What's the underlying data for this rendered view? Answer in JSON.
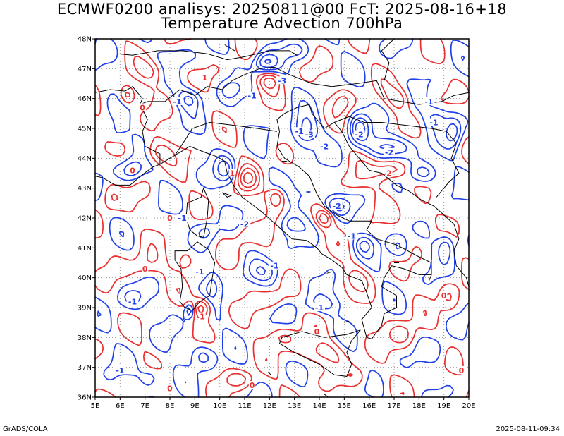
{
  "title_line1": "ECMWF0200 analisys: 20250811@00 FcT: 2025-08-16+18",
  "title_line2": "Temperature Advection 700hPa",
  "footer_left": "GrADS/COLA",
  "footer_right": "2025-08-11-09:34",
  "map": {
    "lon_range": [
      5,
      20
    ],
    "lat_range": [
      36,
      48
    ],
    "lon_labels": [
      "5E",
      "6E",
      "7E",
      "8E",
      "9E",
      "10E",
      "11E",
      "12E",
      "13E",
      "14E",
      "15E",
      "16E",
      "17E",
      "18E",
      "19E",
      "20E"
    ],
    "lat_labels": [
      "36N",
      "37N",
      "38N",
      "39N",
      "40N",
      "41N",
      "42N",
      "43N",
      "44N",
      "45N",
      "46N",
      "47N",
      "48N"
    ],
    "grid": "dotted",
    "colors": {
      "positive": "#e83030",
      "negative": "#2040e8",
      "coast": "#000000"
    },
    "contour_labels": [
      {
        "text": "-3",
        "lon": 12.5,
        "lat": 46.6,
        "sign": "neg"
      },
      {
        "text": "-1",
        "lon": 11.3,
        "lat": 46.1,
        "sign": "neg"
      },
      {
        "text": "-1",
        "lon": 8.3,
        "lat": 45.9,
        "sign": "neg"
      },
      {
        "text": "1",
        "lon": 9.4,
        "lat": 46.7,
        "sign": "pos"
      },
      {
        "text": "0",
        "lon": 6.9,
        "lat": 45.7,
        "sign": "pos"
      },
      {
        "text": "-1",
        "lon": 13.2,
        "lat": 44.9,
        "sign": "neg"
      },
      {
        "text": "-3",
        "lon": 13.6,
        "lat": 44.8,
        "sign": "neg"
      },
      {
        "text": "-2",
        "lon": 14.2,
        "lat": 44.4,
        "sign": "neg"
      },
      {
        "text": "-2",
        "lon": 15.6,
        "lat": 44.8,
        "sign": "neg"
      },
      {
        "text": "-2",
        "lon": 16.8,
        "lat": 44.2,
        "sign": "neg"
      },
      {
        "text": "-1",
        "lon": 18.4,
        "lat": 45.9,
        "sign": "neg"
      },
      {
        "text": "2",
        "lon": 16.8,
        "lat": 43.5,
        "sign": "pos"
      },
      {
        "text": "0",
        "lon": 6.5,
        "lat": 43.6,
        "sign": "pos"
      },
      {
        "text": "-2",
        "lon": 11.0,
        "lat": 41.8,
        "sign": "neg"
      },
      {
        "text": "-2",
        "lon": 14.7,
        "lat": 42.4,
        "sign": "neg"
      },
      {
        "text": "1",
        "lon": 10.5,
        "lat": 43.5,
        "sign": "pos"
      },
      {
        "text": "0",
        "lon": 8.0,
        "lat": 42.0,
        "sign": "pos"
      },
      {
        "text": "-1",
        "lon": 8.5,
        "lat": 42.0,
        "sign": "neg"
      },
      {
        "text": "-1",
        "lon": 15.3,
        "lat": 41.4,
        "sign": "neg"
      },
      {
        "text": "0",
        "lon": 7.0,
        "lat": 40.3,
        "sign": "pos"
      },
      {
        "text": "-1",
        "lon": 12.2,
        "lat": 40.4,
        "sign": "neg"
      },
      {
        "text": "-1",
        "lon": 9.2,
        "lat": 40.2,
        "sign": "neg"
      },
      {
        "text": "-1",
        "lon": 6.5,
        "lat": 39.2,
        "sign": "neg"
      },
      {
        "text": "1",
        "lon": 9.3,
        "lat": 38.7,
        "sign": "pos"
      },
      {
        "text": "-1",
        "lon": 14.0,
        "lat": 39.0,
        "sign": "neg"
      },
      {
        "text": "0",
        "lon": 13.9,
        "lat": 38.2,
        "sign": "pos"
      },
      {
        "text": "-1",
        "lon": 6.0,
        "lat": 36.9,
        "sign": "neg"
      },
      {
        "text": "0",
        "lon": 8.0,
        "lat": 36.3,
        "sign": "pos"
      },
      {
        "text": "0",
        "lon": 19.0,
        "lat": 39.4,
        "sign": "pos"
      },
      {
        "text": "0",
        "lon": 19.7,
        "lat": 36.9,
        "sign": "pos"
      },
      {
        "text": "-1",
        "lon": 18.6,
        "lat": 45.2,
        "sign": "neg"
      },
      {
        "text": "0",
        "lon": 11.3,
        "lat": 36.4,
        "sign": "pos"
      }
    ]
  }
}
